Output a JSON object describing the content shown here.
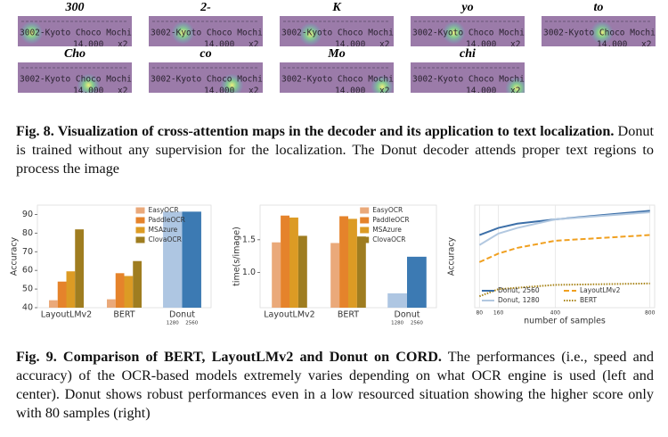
{
  "figure8": {
    "panels": [
      "300",
      "2-",
      "K",
      "yo",
      "to",
      "Cho",
      "co",
      "Mo",
      "chi"
    ],
    "receipt_line1": "3002-Kyoto Choco Mochi",
    "receipt_line2a": "14,000",
    "receipt_line2b": "x2",
    "caption_bold": "Fig. 8. Visualization of cross-attention maps in the decoder and its application to text localization.",
    "caption_text": " Donut is trained without any supervision for the localization. The Donut decoder attends proper text regions to process the image"
  },
  "chart_data": [
    {
      "type": "bar",
      "ylabel": "Accuracy",
      "categories": [
        "LayoutLMv2",
        "BERT",
        "Donut"
      ],
      "series": [
        {
          "name": "EasyOCR",
          "color": "#eaa97a",
          "values": [
            44,
            44.5,
            null
          ]
        },
        {
          "name": "PaddleOCR",
          "color": "#e5832b",
          "values": [
            54,
            58.5,
            null
          ]
        },
        {
          "name": "MSAzure",
          "color": "#dc9b24",
          "values": [
            59.5,
            57,
            null
          ]
        },
        {
          "name": "ClovaOCR",
          "color": "#9f7d20",
          "values": [
            82,
            65,
            null
          ]
        }
      ],
      "donut": {
        "labels": [
          "1280",
          "2560"
        ],
        "colors": [
          "#aec6e2",
          "#3c7ab3"
        ],
        "values": [
          91.5,
          91.5
        ]
      },
      "ylim": [
        40,
        95
      ],
      "yticks": [
        40,
        50,
        60,
        70,
        80,
        90
      ]
    },
    {
      "type": "bar",
      "ylabel": "time(s/image)",
      "categories": [
        "LayoutLMv2",
        "BERT",
        "Donut"
      ],
      "series": [
        {
          "name": "EasyOCR",
          "color": "#eaa97a",
          "values": [
            1.46,
            1.45,
            null
          ]
        },
        {
          "name": "PaddleOCR",
          "color": "#e5832b",
          "values": [
            1.87,
            1.86,
            null
          ]
        },
        {
          "name": "MSAzure",
          "color": "#dc9b24",
          "values": [
            1.84,
            1.82,
            null
          ]
        },
        {
          "name": "ClovaOCR",
          "color": "#9f7d20",
          "values": [
            1.56,
            1.55,
            null
          ]
        }
      ],
      "donut": {
        "labels": [
          "1280",
          "2560"
        ],
        "colors": [
          "#aec6e2",
          "#3c7ab3"
        ],
        "values": [
          0.68,
          1.24
        ]
      },
      "ylim": [
        0.46,
        2.03
      ],
      "yticks": [
        {
          "value": 1,
          "label": "1.0"
        },
        {
          "value": 1.5,
          "label": "1.5"
        }
      ]
    },
    {
      "type": "line",
      "ylabel": "Accuracy",
      "xlabel": "number of samples",
      "x": [
        80,
        160,
        240,
        400,
        800
      ],
      "series": [
        {
          "name": "Donut, 2560",
          "color": "#3c6fa8",
          "dash": "solid",
          "values": [
            82.5,
            85,
            86.5,
            88,
            91
          ]
        },
        {
          "name": "Donut, 1280",
          "color": "#b2c8e0",
          "dash": "solid",
          "values": [
            79,
            83,
            85,
            88,
            90.5
          ]
        },
        {
          "name": "LayoutLMv2",
          "color": "#f0a020",
          "dash": "dashed",
          "values": [
            73,
            76,
            78,
            80.5,
            82.5
          ]
        },
        {
          "name": "BERT",
          "color": "#a88418",
          "dash": "dotted",
          "values": [
            61,
            63.5,
            64,
            65,
            65.5
          ]
        }
      ],
      "xlim": [
        60,
        820
      ],
      "xticks": [
        80,
        160,
        400,
        800
      ],
      "ylim": [
        57,
        93
      ]
    }
  ],
  "figure9": {
    "caption_bold": "Fig. 9. Comparison of BERT, LayoutLMv2 and Donut on CORD.",
    "caption_text": " The performances (i.e., speed and accuracy) of the OCR-based models extremely varies depending on what OCR engine is used (left and center). Donut shows robust performances even in a low resourced situation showing the higher score only with 80 samples (right)"
  }
}
